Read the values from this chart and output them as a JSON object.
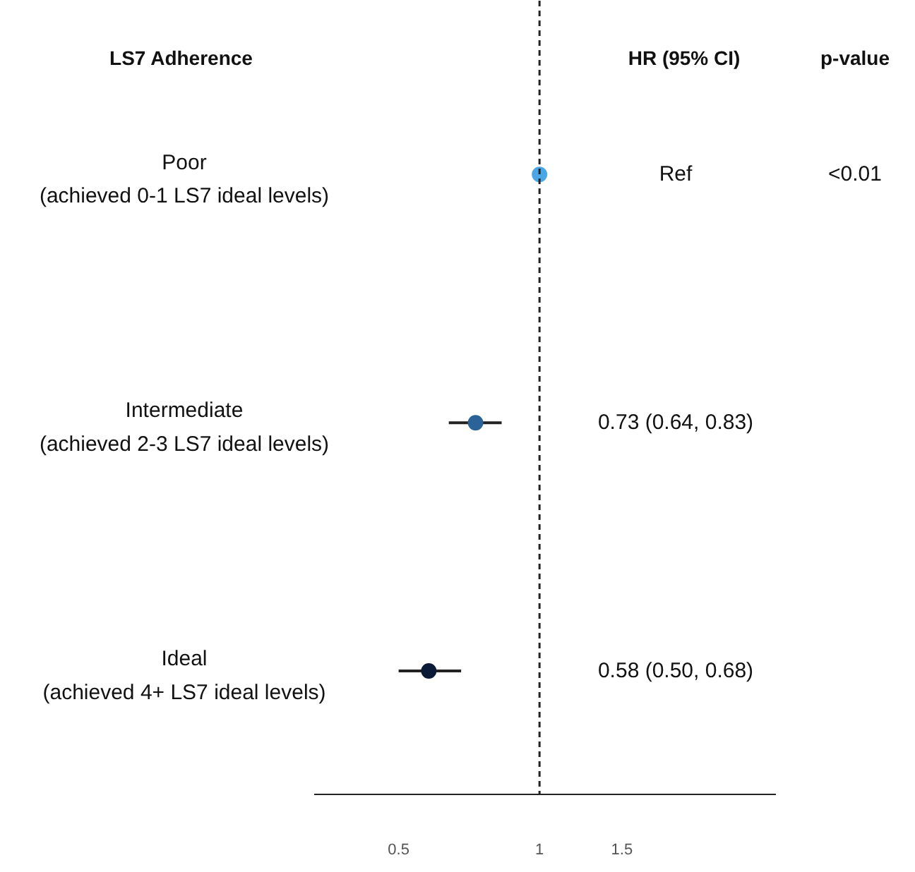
{
  "chart_data": {
    "type": "scatter",
    "orientation": "horizontal",
    "ylabel": "LS7 Adherence",
    "categories": [
      "Poor\n(achieved 0-1 LS7 ideal levels)",
      "Intermediate\n(achieved 2-3 LS7 ideal levels)",
      "Ideal\n(achieved 4+ LS7 ideal levels)"
    ],
    "values": [
      1,
      0.73,
      0.58
    ],
    "errors": [
      null,
      [
        0.64,
        0.83
      ],
      [
        0.5,
        0.68
      ]
    ],
    "colors": [
      "#4ba6e6",
      "#2b6399",
      "#0b1a36"
    ],
    "annotations": [
      "HR (95% CI)",
      "p-value",
      "Ref",
      "0.73 (0.64, 0.83)",
      "0.58 (0.50, 0.68)",
      "<0.01"
    ],
    "ref_lines": [
      {
        "axis": "x",
        "value": 1,
        "line_style": "dashed",
        "color": "#222222"
      }
    ],
    "log": "x",
    "xlim": [
      0.33,
      3.2
    ],
    "xticks": [
      0.5,
      1,
      1.5
    ],
    "grid": false,
    "marker": "circle"
  }
}
